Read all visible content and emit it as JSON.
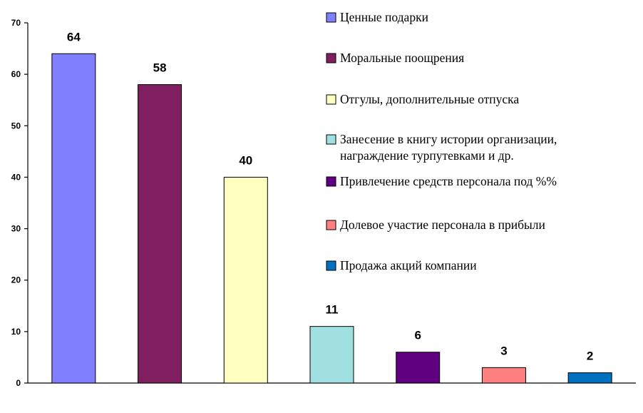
{
  "chart_data": {
    "type": "bar",
    "categories": [
      "Ценные подарки",
      "Моральные поощрения",
      "Отгулы, дополнительные отпуска",
      "Занесение в книгу истории организации, награждение турпутевками и др.",
      "Привлечение средств персонала под %%",
      "Долевое участие персонала в прибыли",
      "Продажа акций компании"
    ],
    "values": [
      64,
      58,
      40,
      11,
      6,
      3,
      2
    ],
    "data_labels": [
      "64",
      "58",
      "40",
      "11",
      "6",
      "3",
      "2"
    ],
    "colors": [
      "#8080FF",
      "#7F1F5F",
      "#FFFFC0",
      "#A0E0E0",
      "#600080",
      "#FF8080",
      "#0070C0"
    ],
    "ylim": [
      0,
      70
    ],
    "yticks": [
      0,
      10,
      20,
      30,
      40,
      50,
      60,
      70
    ],
    "ytick_labels": [
      "0",
      "10",
      "20",
      "30",
      "40",
      "50",
      "60",
      "70"
    ],
    "legend": {
      "placement": "top-right",
      "entries": [
        {
          "lines": [
            "Ценные подарки"
          ],
          "color": "#8080FF"
        },
        {
          "lines": [
            "Моральные поощрения"
          ],
          "color": "#7F1F5F"
        },
        {
          "lines": [
            "Отгулы, дополнительные отпуска"
          ],
          "color": "#FFFFC0"
        },
        {
          "lines": [
            "Занесение в книгу истории организации,",
            "награждение турпутевками и др."
          ],
          "color": "#A0E0E0"
        },
        {
          "lines": [
            "Привлечение средств персонала под %%"
          ],
          "color": "#600080"
        },
        {
          "lines": [
            "Долевое участие персонала в прибыли"
          ],
          "color": "#FF8080"
        },
        {
          "lines": [
            "Продажа акций компании"
          ],
          "color": "#0070C0"
        }
      ]
    },
    "grid": false,
    "title": "",
    "xlabel": "",
    "ylabel": ""
  }
}
